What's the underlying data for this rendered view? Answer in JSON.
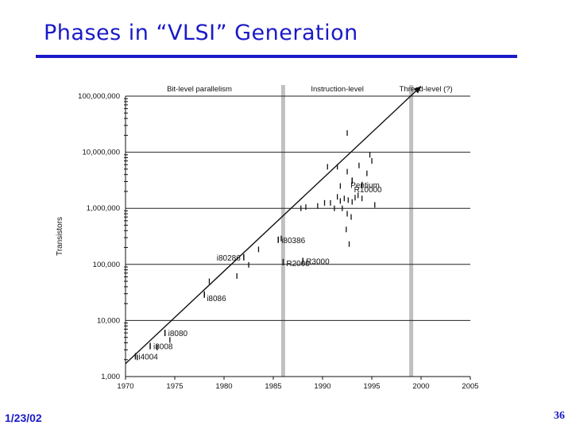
{
  "slide": {
    "title": "Phases in “VLSI” Generation",
    "date": "1/23/02",
    "page_number": "36"
  },
  "colors": {
    "title": "#1a1ac8",
    "ink": "#111111",
    "era_band": "#c0c0c0",
    "grid": "#222222"
  },
  "chart_data": {
    "type": "scatter",
    "title": "",
    "xlabel": "",
    "ylabel": "Transistors",
    "xlim": [
      1970,
      2005
    ],
    "ylim": [
      1000,
      100000000
    ],
    "yscale": "log",
    "x_ticks": [
      1970,
      1975,
      1980,
      1985,
      1990,
      1995,
      2000,
      2005
    ],
    "x_tick_labels": [
      "1970",
      "1975",
      "1980",
      "1985",
      "1990",
      "1995",
      "2000",
      "2005"
    ],
    "y_ticks": [
      1000,
      10000,
      100000,
      1000000,
      10000000,
      100000000
    ],
    "y_tick_labels": [
      "1,000",
      "10,000",
      "100,000",
      "1,000,000",
      "10,000,000",
      "100,000,000"
    ],
    "eras": [
      {
        "label": "Bit-level parallelism",
        "center": 1977.5
      },
      {
        "label": "Instruction-level",
        "center": 1991.5
      },
      {
        "label": "Thread-level (?)",
        "center": 2000.5
      }
    ],
    "era_boundaries": [
      1986,
      1999
    ],
    "trend": {
      "x": [
        1970,
        2000
      ],
      "y": [
        1700,
        150000000
      ]
    },
    "labeled_points": [
      {
        "label": "i4004",
        "x": 1971,
        "y": 2300
      },
      {
        "label": "i8008",
        "x": 1972.5,
        "y": 3500
      },
      {
        "label": "i8080",
        "x": 1974,
        "y": 6000
      },
      {
        "label": "i8086",
        "x": 1978,
        "y": 29000
      },
      {
        "label": "i80286",
        "x": 1982,
        "y": 134000
      },
      {
        "label": "i80386",
        "x": 1985.5,
        "y": 275000
      },
      {
        "label": "R2000",
        "x": 1986,
        "y": 110000
      },
      {
        "label": "R3000",
        "x": 1988,
        "y": 115000
      },
      {
        "label": "Pentium",
        "x": 1993,
        "y": 3100000
      },
      {
        "label": "R10000",
        "x": 1994,
        "y": 2600000
      }
    ],
    "unlabeled_points": [
      {
        "x": 1971.2,
        "y": 2200
      },
      {
        "x": 1973.2,
        "y": 3300
      },
      {
        "x": 1974.5,
        "y": 4500
      },
      {
        "x": 1978.5,
        "y": 50000
      },
      {
        "x": 1981.3,
        "y": 62000
      },
      {
        "x": 1982.5,
        "y": 98000
      },
      {
        "x": 1983.5,
        "y": 185000
      },
      {
        "x": 1985.8,
        "y": 290000
      },
      {
        "x": 1987.8,
        "y": 1000000
      },
      {
        "x": 1988.3,
        "y": 1050000
      },
      {
        "x": 1989.5,
        "y": 1100000
      },
      {
        "x": 1990.2,
        "y": 1250000
      },
      {
        "x": 1990.8,
        "y": 1250000
      },
      {
        "x": 1991.2,
        "y": 1000000
      },
      {
        "x": 1991.5,
        "y": 1600000
      },
      {
        "x": 1991.8,
        "y": 1350000
      },
      {
        "x": 1992.2,
        "y": 1500000
      },
      {
        "x": 1992.6,
        "y": 1400000
      },
      {
        "x": 1993.0,
        "y": 1300000
      },
      {
        "x": 1993.3,
        "y": 1550000
      },
      {
        "x": 1993.6,
        "y": 1700000
      },
      {
        "x": 1994.0,
        "y": 1500000
      },
      {
        "x": 1995.3,
        "y": 1150000
      },
      {
        "x": 1992.0,
        "y": 1000000
      },
      {
        "x": 1992.5,
        "y": 800000
      },
      {
        "x": 1992.9,
        "y": 700000
      },
      {
        "x": 1990.5,
        "y": 5500000
      },
      {
        "x": 1991.5,
        "y": 5500000
      },
      {
        "x": 1992.5,
        "y": 4500000
      },
      {
        "x": 1993.7,
        "y": 5800000
      },
      {
        "x": 1994.5,
        "y": 4200000
      },
      {
        "x": 1995.0,
        "y": 7000000
      },
      {
        "x": 1992.5,
        "y": 22000000
      },
      {
        "x": 1994.8,
        "y": 9000000
      },
      {
        "x": 1991.8,
        "y": 2500000
      },
      {
        "x": 1992.4,
        "y": 420000
      },
      {
        "x": 1992.7,
        "y": 230000
      }
    ]
  }
}
